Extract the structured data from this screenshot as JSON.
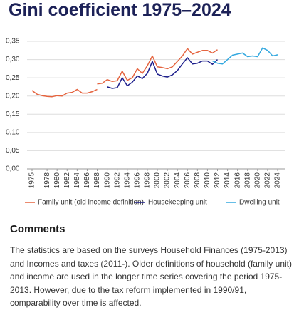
{
  "chart_data": {
    "type": "line",
    "title": "Gini coefficient 1975–2024",
    "xlim": [
      1975,
      2024
    ],
    "xticks": [
      1975,
      1978,
      1980,
      1982,
      1984,
      1986,
      1988,
      1990,
      1992,
      1994,
      1996,
      1998,
      2000,
      2002,
      2004,
      2006,
      2008,
      2010,
      2012,
      2014,
      2016,
      2018,
      2020,
      2022,
      2024
    ],
    "ylim": [
      0,
      0.35
    ],
    "yticks": [
      {
        "value": 0,
        "label": "0,00"
      },
      {
        "value": 0.05,
        "label": "0,05"
      },
      {
        "value": 0.1,
        "label": "0,10"
      },
      {
        "value": 0.15,
        "label": "0,15"
      },
      {
        "value": 0.2,
        "label": "0,20"
      },
      {
        "value": 0.25,
        "label": "0,25"
      },
      {
        "value": 0.3,
        "label": "0,30"
      },
      {
        "value": 0.35,
        "label": "0,35"
      }
    ],
    "grid": true,
    "series": [
      {
        "name": "Family unit (old income definition)",
        "color": "#e5643f",
        "x": [
          1975,
          1976,
          1977,
          1978,
          1979,
          1980,
          1981,
          1982,
          1983,
          1984,
          1985,
          1986,
          1987,
          1988,
          null,
          1988,
          1989,
          1990,
          1991,
          1992,
          1993,
          1994,
          1995,
          1996,
          1997,
          1998,
          1999,
          2000,
          2001,
          2002,
          2003,
          2004,
          2005,
          2006,
          2007,
          2008,
          2009,
          2010,
          2011,
          2012
        ],
        "values": [
          0.215,
          0.205,
          0.201,
          0.199,
          0.198,
          0.201,
          0.2,
          0.208,
          0.21,
          0.218,
          0.208,
          0.208,
          0.212,
          0.218,
          null,
          0.233,
          0.235,
          0.245,
          0.24,
          0.242,
          0.268,
          0.243,
          0.25,
          0.275,
          0.262,
          0.283,
          0.31,
          0.28,
          0.278,
          0.275,
          0.28,
          0.295,
          0.31,
          0.33,
          0.315,
          0.32,
          0.325,
          0.325,
          0.318,
          0.327
        ]
      },
      {
        "name": "Housekeeping unit",
        "color": "#1d1f8c",
        "x": [
          1990,
          1991,
          1992,
          1993,
          1994,
          1995,
          1996,
          1997,
          1998,
          1999,
          2000,
          2001,
          2002,
          2003,
          2004,
          2005,
          2006,
          2007,
          2008,
          2009,
          2010,
          2011,
          2012
        ],
        "values": [
          0.225,
          0.221,
          0.223,
          0.25,
          0.228,
          0.238,
          0.255,
          0.248,
          0.262,
          0.295,
          0.26,
          0.255,
          0.252,
          0.258,
          0.27,
          0.288,
          0.305,
          0.288,
          0.29,
          0.296,
          0.296,
          0.287,
          0.3
        ]
      },
      {
        "name": "Dwelling unit",
        "color": "#33a8df",
        "x": [
          2011,
          2012,
          2013,
          2014,
          2015,
          2016,
          2017,
          2018,
          2019,
          2020,
          2021,
          2022,
          2023,
          2024
        ],
        "values": [
          0.296,
          0.29,
          0.288,
          0.3,
          0.312,
          0.315,
          0.318,
          0.308,
          0.31,
          0.308,
          0.332,
          0.325,
          0.31,
          0.313
        ]
      }
    ]
  },
  "comments": {
    "heading": "Comments",
    "text": "The statistics are based on the surveys Household Finances (1975-2013) and Incomes and taxes (2011-). Older definitions of household (family unit) and income are used in the longer time series covering the period 1975-2013. However, due to the tax reform implemented in 1990/91, comparability over time is affected."
  }
}
